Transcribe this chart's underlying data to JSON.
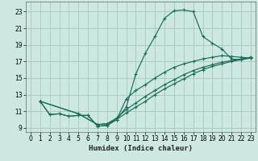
{
  "xlabel": "Humidex (Indice chaleur)",
  "bg_color": "#cce8e0",
  "grid_color": "#aaccc4",
  "line_color": "#1a6b5a",
  "xlim": [
    -0.5,
    23.5
  ],
  "ylim": [
    8.5,
    24.2
  ],
  "yticks": [
    9,
    11,
    13,
    15,
    17,
    19,
    21,
    23
  ],
  "xticks": [
    0,
    1,
    2,
    3,
    4,
    5,
    6,
    7,
    8,
    9,
    10,
    11,
    12,
    13,
    14,
    15,
    16,
    17,
    18,
    19,
    20,
    21,
    22,
    23
  ],
  "curve1_x": [
    1,
    2,
    3,
    4,
    5,
    6,
    7,
    8,
    9,
    10,
    11,
    12,
    13,
    14,
    15,
    16,
    17,
    18,
    19,
    20,
    21,
    22,
    23
  ],
  "curve1_y": [
    12.2,
    10.6,
    10.7,
    10.4,
    10.5,
    10.5,
    9.2,
    9.3,
    10.0,
    11.5,
    15.5,
    18.0,
    20.0,
    22.2,
    23.1,
    23.2,
    23.0,
    20.0,
    19.2,
    18.5,
    17.3,
    17.2,
    17.4
  ],
  "curve2_x": [
    1,
    2,
    3,
    4,
    5,
    6,
    7,
    8,
    9,
    10,
    11,
    12,
    13,
    14,
    15,
    16,
    17,
    18,
    19,
    20,
    21,
    22,
    23
  ],
  "curve2_y": [
    12.2,
    10.6,
    10.7,
    10.4,
    10.5,
    10.5,
    9.2,
    9.3,
    10.0,
    12.5,
    13.5,
    14.2,
    15.0,
    15.7,
    16.3,
    16.7,
    17.0,
    17.3,
    17.5,
    17.7,
    17.6,
    17.5,
    17.4
  ],
  "curve3_x": [
    1,
    5,
    7,
    8,
    9,
    10,
    11,
    12,
    13,
    14,
    15,
    16,
    17,
    18,
    19,
    20,
    21,
    22,
    23
  ],
  "curve3_y": [
    12.2,
    10.7,
    9.4,
    9.5,
    10.2,
    11.2,
    12.0,
    12.8,
    13.5,
    14.2,
    14.8,
    15.4,
    15.9,
    16.3,
    16.6,
    16.9,
    17.1,
    17.3,
    17.5
  ],
  "curve4_x": [
    1,
    5,
    7,
    8,
    9,
    10,
    11,
    12,
    13,
    14,
    15,
    16,
    17,
    18,
    19,
    20,
    21,
    22,
    23
  ],
  "curve4_y": [
    12.2,
    10.7,
    9.4,
    9.5,
    10.0,
    10.8,
    11.5,
    12.2,
    13.0,
    13.7,
    14.3,
    14.9,
    15.5,
    16.0,
    16.4,
    16.7,
    17.0,
    17.2,
    17.5
  ]
}
